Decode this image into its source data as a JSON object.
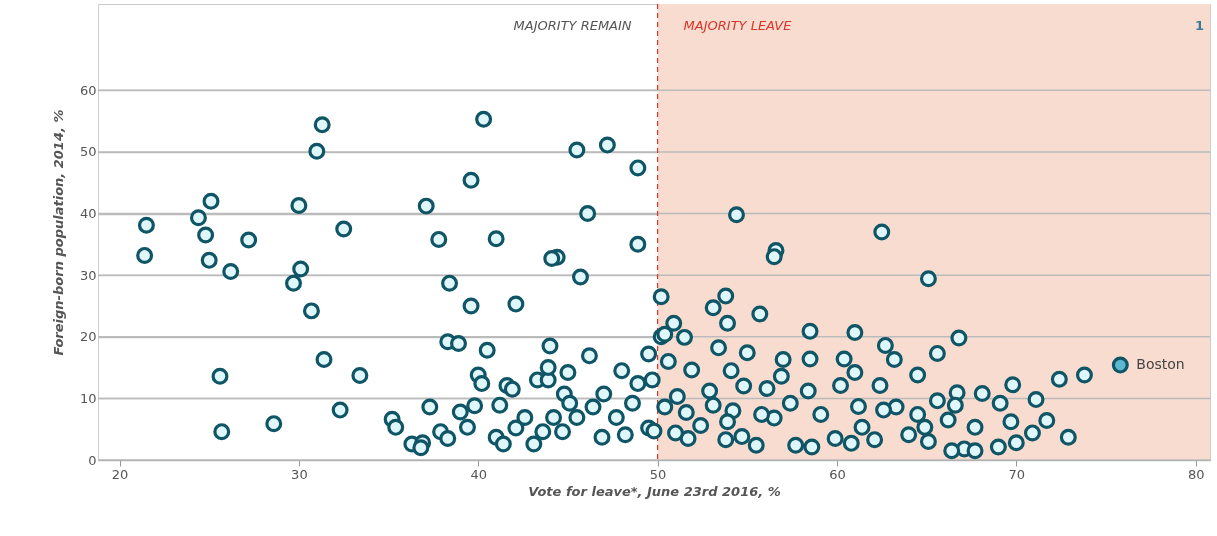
{
  "chart_data": {
    "type": "scatter",
    "xlabel": "Vote for leave*, June 23rd 2016, %",
    "ylabel": "Foreign-born population, 2014, %",
    "xlim": [
      18.8,
      80.8
    ],
    "ylim": [
      0,
      74
    ],
    "xticks": [
      20,
      30,
      40,
      50,
      60,
      70,
      80
    ],
    "yticks": [
      0,
      10,
      20,
      30,
      40,
      50,
      60
    ],
    "grid": "y",
    "marker": "circle",
    "annotations": [
      "MAJORITY REMAIN",
      "MAJORITY LEAVE",
      {
        "text": "Boston",
        "x": 75.8,
        "y": 15.4
      },
      "1"
    ],
    "bands": [
      {
        "axis": "x",
        "from": 50,
        "to": 80.8,
        "color": "#f9dcd0"
      }
    ],
    "ref_lines": [
      {
        "axis": "x",
        "value": 50,
        "color": "#d9342b",
        "line_style": "dashed"
      }
    ],
    "series": [
      {
        "color": "#0f5566",
        "x": [
          31.3,
          31.0,
          25.1,
          24.4,
          21.5,
          24.8,
          21.4,
          27.2,
          25.0,
          26.2,
          30.0,
          32.5,
          30.1,
          29.7,
          30.7,
          25.6,
          25.7,
          28.6,
          31.4,
          33.4,
          32.3,
          40.3,
          39.6,
          37.1,
          45.5,
          47.2,
          48.9,
          37.8,
          41.0,
          46.1,
          44.4,
          44.1,
          48.9,
          45.7,
          38.4,
          39.6,
          42.1,
          38.3,
          38.9,
          40.5,
          44.0,
          46.2,
          49.5,
          50.2,
          40.0,
          40.2,
          35.2,
          35.4,
          36.3,
          36.9,
          36.8,
          37.3,
          37.9,
          38.3,
          39.0,
          39.4,
          39.8,
          41.0,
          41.4,
          41.2,
          41.6,
          41.9,
          42.1,
          42.6,
          43.1,
          43.6,
          43.3,
          43.9,
          43.9,
          45.0,
          44.2,
          44.7,
          44.8,
          45.1,
          45.5,
          46.4,
          47.0,
          46.9,
          47.7,
          48.0,
          48.2,
          48.6,
          48.9,
          49.5,
          49.7,
          50.2,
          54.4,
          62.5,
          56.6,
          56.5,
          65.1,
          53.1,
          53.8,
          53.9,
          55.7,
          50.9,
          50.4,
          51.5,
          58.5,
          61.0,
          62.7,
          63.2,
          65.6,
          66.8,
          50.6,
          53.4,
          55.0,
          51.9,
          57.0,
          58.5,
          60.4,
          61.0,
          62.4,
          64.5,
          66.7,
          68.1,
          69.8,
          71.1,
          72.4,
          73.8,
          72.9,
          71.7,
          69.7,
          70.9,
          69.1,
          70.0,
          69.0,
          67.7,
          67.1,
          67.7,
          66.4,
          66.6,
          65.6,
          66.2,
          65.1,
          64.0,
          64.9,
          64.5,
          63.3,
          62.6,
          62.1,
          61.4,
          61.2,
          60.2,
          59.9,
          60.8,
          59.1,
          58.6,
          58.4,
          57.7,
          57.4,
          56.9,
          56.5,
          56.1,
          55.5,
          55.8,
          54.8,
          54.7,
          54.2,
          53.8,
          53.9,
          53.1,
          52.9,
          54.1,
          52.4,
          51.7,
          51.6,
          51.0,
          51.1,
          50.4,
          49.8
        ],
        "values": [
          54.4,
          50.1,
          42.0,
          39.3,
          38.1,
          36.5,
          33.2,
          35.7,
          32.4,
          30.6,
          41.3,
          37.5,
          31.0,
          28.7,
          24.2,
          13.6,
          4.6,
          5.9,
          16.3,
          13.7,
          8.1,
          55.3,
          45.4,
          41.2,
          50.3,
          51.1,
          47.4,
          35.8,
          35.9,
          40.0,
          32.9,
          32.7,
          35.0,
          29.7,
          28.7,
          25.0,
          25.3,
          19.2,
          18.9,
          17.8,
          18.5,
          16.9,
          17.2,
          20.0,
          13.8,
          12.4,
          6.6,
          5.3,
          2.6,
          2.8,
          2.0,
          8.6,
          4.6,
          3.5,
          7.8,
          5.3,
          8.8,
          3.7,
          2.6,
          8.9,
          12.1,
          11.5,
          5.2,
          6.9,
          2.6,
          4.6,
          13.0,
          13.0,
          15.0,
          14.2,
          6.9,
          4.6,
          10.7,
          9.2,
          6.9,
          8.6,
          10.7,
          3.7,
          6.9,
          14.5,
          4.1,
          9.2,
          12.4,
          5.2,
          13.0,
          26.5,
          39.8,
          37.0,
          34.0,
          33.0,
          29.4,
          24.7,
          26.6,
          22.2,
          23.7,
          22.2,
          20.4,
          19.9,
          20.9,
          20.7,
          18.6,
          16.3,
          17.3,
          19.8,
          16.0,
          18.2,
          17.4,
          14.6,
          16.3,
          16.4,
          16.4,
          14.2,
          12.1,
          13.8,
          10.9,
          10.8,
          12.2,
          9.8,
          13.1,
          13.8,
          3.7,
          6.4,
          6.2,
          4.4,
          9.2,
          2.8,
          2.1,
          5.3,
          1.8,
          1.5,
          1.5,
          8.9,
          9.6,
          6.5,
          3.0,
          4.1,
          5.3,
          7.4,
          8.6,
          8.1,
          3.3,
          5.3,
          8.7,
          12.1,
          3.5,
          2.7,
          7.4,
          2.1,
          11.2,
          2.4,
          9.2,
          13.6,
          6.8,
          11.6,
          2.4,
          7.4,
          12.0,
          3.8,
          8.0,
          3.3,
          6.2,
          8.9,
          11.2,
          14.5,
          5.6,
          3.5,
          7.7,
          4.4,
          10.3,
          8.6,
          4.7
        ]
      },
      {
        "color": "#5bb8d0",
        "x": [
          75.8
        ],
        "values": [
          15.4
        ]
      }
    ]
  }
}
